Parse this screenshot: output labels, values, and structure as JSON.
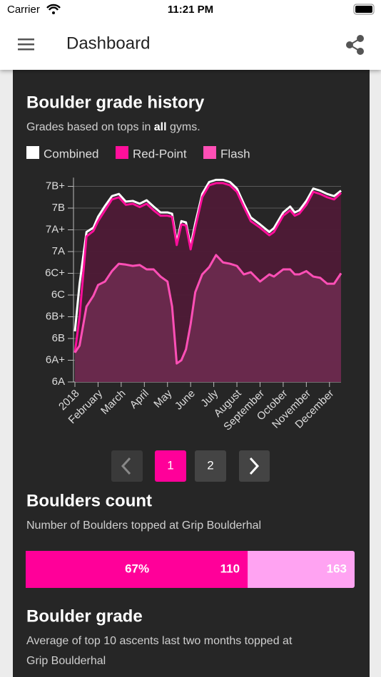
{
  "status_bar": {
    "carrier": "Carrier",
    "time": "11:21 PM"
  },
  "app_bar": {
    "title": "Dashboard"
  },
  "chart_data": {
    "type": "area",
    "title": "Boulder grade history",
    "subtitle_parts": [
      "Grades based on tops in ",
      "all",
      " gyms."
    ],
    "x": [
      0,
      0.2,
      0.5,
      0.8,
      1.0,
      1.3,
      1.6,
      1.9,
      2.2,
      2.5,
      2.8,
      3.1,
      3.4,
      3.7,
      4.0,
      4.2,
      4.4,
      4.6,
      4.8,
      5.0,
      5.2,
      5.5,
      5.8,
      6.1,
      6.4,
      6.7,
      7.0,
      7.3,
      7.6,
      8.0,
      8.4,
      8.6,
      9.0,
      9.3,
      9.5,
      9.7,
      10.0,
      10.3,
      10.6,
      10.9,
      11.2,
      11.5
    ],
    "xlim": [
      0,
      11.5
    ],
    "xticks": [
      {
        "value": 0,
        "label": "2018"
      },
      {
        "value": 1,
        "label": "February"
      },
      {
        "value": 2,
        "label": "March"
      },
      {
        "value": 3,
        "label": "April"
      },
      {
        "value": 4,
        "label": "May"
      },
      {
        "value": 5,
        "label": "June"
      },
      {
        "value": 6,
        "label": "July"
      },
      {
        "value": 7,
        "label": "August"
      },
      {
        "value": 8,
        "label": "September"
      },
      {
        "value": 9,
        "label": "October"
      },
      {
        "value": 10,
        "label": "November"
      },
      {
        "value": 11,
        "label": "December"
      }
    ],
    "ylim": [
      0,
      9.4
    ],
    "yticks": [
      {
        "value": 0,
        "label": "6A"
      },
      {
        "value": 1,
        "label": "6A+"
      },
      {
        "value": 2,
        "label": "6B"
      },
      {
        "value": 3,
        "label": "6B+"
      },
      {
        "value": 4,
        "label": "6C"
      },
      {
        "value": 5,
        "label": "6C+"
      },
      {
        "value": 6,
        "label": "7A"
      },
      {
        "value": 7,
        "label": "7A+"
      },
      {
        "value": 8,
        "label": "7B"
      },
      {
        "value": 9,
        "label": "7B+"
      }
    ],
    "grid": true,
    "series": [
      {
        "name": "Combined",
        "color": "#ffffff",
        "fill": null,
        "values": [
          2.33,
          4.5,
          6.9,
          7.1,
          7.6,
          8.1,
          8.55,
          8.65,
          8.3,
          8.33,
          8.2,
          8.36,
          8.07,
          7.8,
          7.8,
          7.74,
          6.43,
          7.4,
          7.34,
          6.26,
          7.3,
          8.65,
          9.2,
          9.3,
          9.3,
          9.2,
          8.9,
          8.2,
          7.57,
          7.25,
          6.9,
          7.08,
          7.8,
          8.07,
          7.8,
          7.9,
          8.33,
          8.9,
          8.8,
          8.65,
          8.55,
          8.8
        ]
      },
      {
        "name": "Red-Point",
        "color": "#ff0f9b",
        "fill": "#4e1a36",
        "values": [
          1.35,
          3.0,
          6.7,
          6.95,
          7.4,
          7.9,
          8.4,
          8.5,
          8.15,
          8.2,
          8.05,
          8.2,
          7.9,
          7.65,
          7.65,
          7.6,
          6.3,
          7.25,
          7.2,
          6.1,
          7.1,
          8.5,
          9.05,
          9.15,
          9.15,
          9.05,
          8.75,
          8.05,
          7.4,
          7.1,
          6.75,
          6.9,
          7.65,
          7.9,
          7.65,
          7.75,
          8.15,
          8.75,
          8.65,
          8.5,
          8.4,
          8.7
        ]
      },
      {
        "name": "Flash",
        "color": "#ff4fb6",
        "fill": "#6a2a4e",
        "values": [
          1.35,
          1.67,
          3.47,
          3.97,
          4.46,
          4.62,
          5.1,
          5.44,
          5.4,
          5.34,
          5.38,
          5.18,
          5.18,
          4.85,
          4.62,
          3.47,
          0.85,
          1.0,
          1.5,
          2.66,
          4.13,
          4.95,
          5.28,
          5.84,
          5.5,
          5.44,
          5.34,
          4.95,
          5.05,
          4.62,
          4.95,
          4.85,
          5.18,
          5.18,
          4.95,
          4.95,
          5.1,
          4.85,
          4.79,
          4.52,
          4.52,
          5.0
        ]
      }
    ]
  },
  "pagination": {
    "pages": [
      1,
      2
    ],
    "current": 1
  },
  "boulders_count": {
    "title": "Boulders count",
    "subtitle": "Number of Boulders topped at Grip Boulderhal",
    "percent_label": "67%",
    "topped": 110,
    "total": 163,
    "topped_color": "#ff0099",
    "total_color": "#ffa3f2"
  },
  "boulder_grade": {
    "title": "Boulder grade",
    "subtitle_lines": [
      "Average of top 10 ascents last two months topped at",
      "Grip Boulderhal"
    ]
  }
}
